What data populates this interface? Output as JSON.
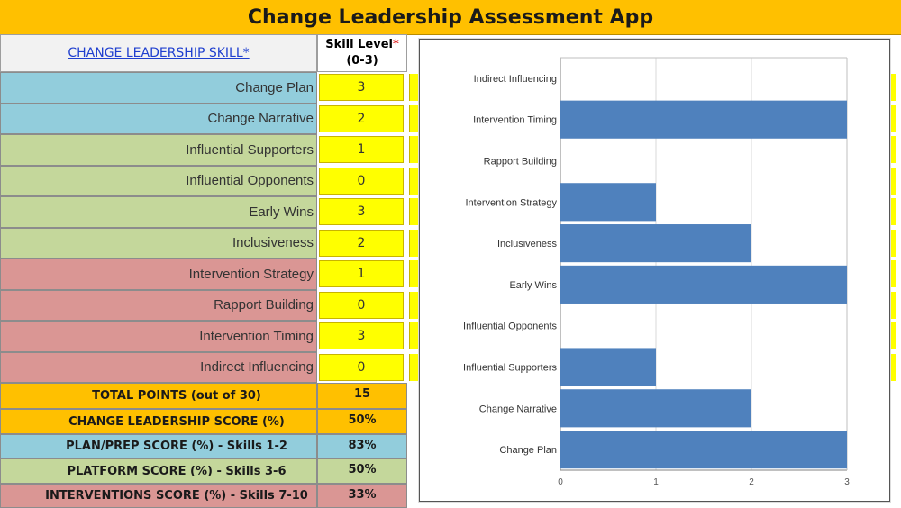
{
  "app": {
    "title": "Change Leadership Assessment App"
  },
  "table": {
    "skill_header": "CHANGE LEADERSHIP SKILL*",
    "level_header_line1": "Skill Level",
    "level_header_star": "*",
    "level_header_line2": "(0-3)",
    "skills": [
      {
        "label": "Change Plan",
        "level": "3",
        "group": "plan"
      },
      {
        "label": "Change Narrative",
        "level": "2",
        "group": "plan"
      },
      {
        "label": "Influential Supporters",
        "level": "1",
        "group": "platform"
      },
      {
        "label": "Influential Opponents",
        "level": "0",
        "group": "platform"
      },
      {
        "label": "Early Wins",
        "level": "3",
        "group": "platform"
      },
      {
        "label": "Inclusiveness",
        "level": "2",
        "group": "platform"
      },
      {
        "label": "Intervention Strategy",
        "level": "1",
        "group": "interventions"
      },
      {
        "label": "Rapport Building",
        "level": "0",
        "group": "interventions"
      },
      {
        "label": "Intervention Timing",
        "level": "3",
        "group": "interventions"
      },
      {
        "label": "Indirect Influencing",
        "level": "0",
        "group": "interventions"
      }
    ],
    "summary": [
      {
        "label": "TOTAL  POINTS (out of 30)",
        "value": "15"
      },
      {
        "label": "CHANGE LEADERSHIP SCORE (%)",
        "value": "50%"
      },
      {
        "label": "PLAN/PREP SCORE (%) - Skills 1-2",
        "value": "83%"
      },
      {
        "label": "PLATFORM SCORE (%) - Skills 3-6",
        "value": "50%"
      },
      {
        "label": "INTERVENTIONS SCORE (%) - Skills 7-10",
        "value": "33%"
      }
    ]
  },
  "colors": {
    "title_bg": "#ffc000",
    "plan": "#92cddc",
    "platform": "#c4d79b",
    "interventions": "#da9694",
    "summary_orange": "#ffc000",
    "level_yellow": "#ffff00",
    "bar": "#4f81bd"
  },
  "chart_data": {
    "type": "bar",
    "orientation": "horizontal",
    "categories": [
      "Indirect Influencing",
      "Intervention Timing",
      "Rapport Building",
      "Intervention Strategy",
      "Inclusiveness",
      "Early Wins",
      "Influential Opponents",
      "Influential Supporters",
      "Change Narrative",
      "Change Plan"
    ],
    "values": [
      0,
      3,
      0,
      1,
      2,
      3,
      0,
      1,
      2,
      3
    ],
    "xlim": [
      0,
      3
    ],
    "x_ticks": [
      "0",
      "1",
      "2",
      "3"
    ],
    "grid": "vertical",
    "legend": "none"
  }
}
